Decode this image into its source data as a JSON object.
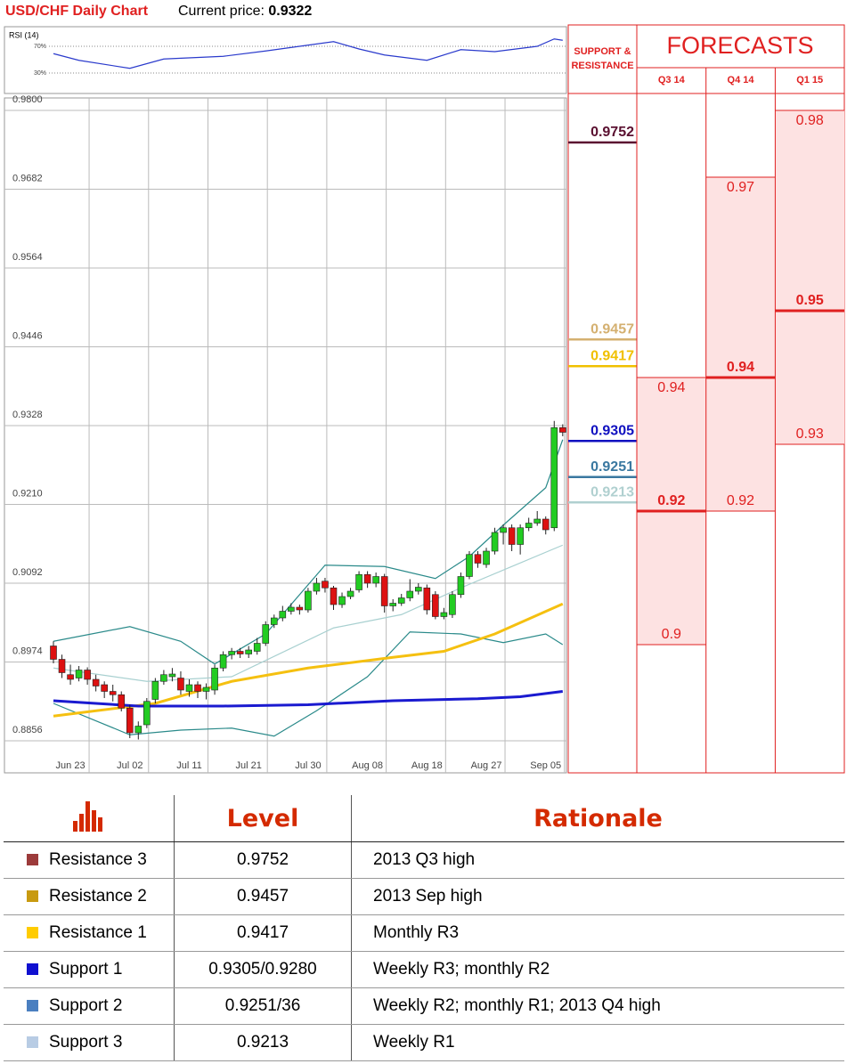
{
  "header": {
    "title": "USD/CHF Daily Chart",
    "price_label": "Current price:",
    "price": 0.9322
  },
  "rsi": {
    "label": "RSI (14)",
    "ylim": [
      0,
      100
    ],
    "yticks": [
      {
        "value": 70,
        "label": "70%"
      },
      {
        "value": 30,
        "label": "30%"
      }
    ],
    "color": "#2a3acc",
    "x": [
      0,
      3,
      9,
      13,
      20,
      25,
      33,
      36,
      39,
      44,
      48,
      52,
      57,
      59,
      60
    ],
    "values": [
      59,
      49,
      37,
      51,
      55,
      63,
      77,
      66,
      57,
      49,
      65,
      62,
      70,
      81,
      79
    ]
  },
  "chart_data": {
    "type": "candlestick",
    "categories": [
      null,
      null,
      "Jun 23",
      null,
      null,
      null,
      null,
      null,
      null,
      "Jul 02",
      null,
      null,
      null,
      null,
      null,
      null,
      "Jul 11",
      null,
      null,
      null,
      null,
      null,
      null,
      "Jul 21",
      null,
      null,
      null,
      null,
      null,
      null,
      "Jul 30",
      null,
      null,
      null,
      null,
      null,
      null,
      "Aug 08",
      null,
      null,
      null,
      null,
      null,
      null,
      "Aug 18",
      null,
      null,
      null,
      null,
      null,
      null,
      "Aug 27",
      null,
      null,
      null,
      null,
      null,
      null,
      "Sep 05",
      null,
      null
    ],
    "open": [
      0.8998,
      0.8978,
      0.8955,
      0.895,
      0.8962,
      0.8948,
      0.894,
      0.893,
      0.8925,
      0.8905,
      0.8868,
      0.888,
      0.8918,
      0.8945,
      0.8952,
      0.895,
      0.893,
      0.894,
      0.893,
      0.8932,
      0.8965,
      0.8985,
      0.899,
      0.8986,
      0.899,
      0.9002,
      0.903,
      0.904,
      0.905,
      0.9056,
      0.9052,
      0.908,
      0.9095,
      0.9085,
      0.906,
      0.9072,
      0.9082,
      0.9105,
      0.9092,
      0.9102,
      0.9058,
      0.9062,
      0.907,
      0.908,
      0.9085,
      0.9075,
      0.9042,
      0.9045,
      0.9075,
      0.9102,
      0.9135,
      0.912,
      0.914,
      0.9168,
      0.9175,
      0.915,
      0.9175,
      0.9182,
      0.9188,
      0.9175,
      0.9325
    ],
    "high": [
      0.9005,
      0.8985,
      0.897,
      0.8968,
      0.8966,
      0.8955,
      0.8945,
      0.894,
      0.893,
      0.891,
      0.8885,
      0.892,
      0.895,
      0.8962,
      0.8965,
      0.896,
      0.8948,
      0.8945,
      0.8942,
      0.897,
      0.899,
      0.8995,
      0.8995,
      0.8998,
      0.901,
      0.9035,
      0.9045,
      0.9058,
      0.9062,
      0.906,
      0.9085,
      0.91,
      0.91,
      0.9088,
      0.9078,
      0.9085,
      0.911,
      0.911,
      0.9108,
      0.9106,
      0.9068,
      0.9076,
      0.9098,
      0.9092,
      0.909,
      0.908,
      0.9055,
      0.908,
      0.9108,
      0.914,
      0.914,
      0.9145,
      0.9175,
      0.918,
      0.918,
      0.918,
      0.919,
      0.92,
      0.9192,
      0.9335,
      0.933
    ],
    "low": [
      0.8972,
      0.895,
      0.894,
      0.8945,
      0.894,
      0.893,
      0.892,
      0.8915,
      0.89,
      0.886,
      0.8858,
      0.8875,
      0.8912,
      0.894,
      0.8945,
      0.8925,
      0.8922,
      0.892,
      0.8918,
      0.8925,
      0.896,
      0.8978,
      0.898,
      0.898,
      0.8985,
      0.8998,
      0.9025,
      0.9035,
      0.9045,
      0.9045,
      0.9048,
      0.9075,
      0.9078,
      0.9052,
      0.9055,
      0.9068,
      0.9078,
      0.9085,
      0.9086,
      0.9048,
      0.905,
      0.9058,
      0.9065,
      0.9075,
      0.9045,
      0.9038,
      0.9038,
      0.904,
      0.907,
      0.9098,
      0.9115,
      0.9115,
      0.9135,
      0.915,
      0.914,
      0.9135,
      0.917,
      0.9178,
      0.9165,
      0.917,
      0.9312
    ],
    "close": [
      0.8978,
      0.8958,
      0.8948,
      0.8962,
      0.8948,
      0.8938,
      0.893,
      0.8925,
      0.8905,
      0.8868,
      0.8878,
      0.8915,
      0.8945,
      0.8955,
      0.8956,
      0.8932,
      0.894,
      0.893,
      0.8936,
      0.8965,
      0.8985,
      0.899,
      0.8986,
      0.8992,
      0.9002,
      0.903,
      0.904,
      0.905,
      0.9056,
      0.9052,
      0.908,
      0.9092,
      0.9085,
      0.906,
      0.9072,
      0.908,
      0.9105,
      0.9092,
      0.9102,
      0.9058,
      0.9062,
      0.907,
      0.908,
      0.9086,
      0.9052,
      0.9042,
      0.9048,
      0.9075,
      0.9102,
      0.9135,
      0.9122,
      0.914,
      0.9168,
      0.9175,
      0.915,
      0.9175,
      0.9182,
      0.9188,
      0.9172,
      0.9325,
      0.9318
    ],
    "up_color": "#22cc22",
    "down_color": "#dd1111",
    "series": [
      {
        "color": "#a8d0d0",
        "x": [
          0,
          11,
          21,
          33,
          41,
          48,
          60
        ],
        "values": [
          0.8965,
          0.8945,
          0.8952,
          0.9025,
          0.9045,
          0.9085,
          0.9149
        ]
      },
      {
        "color": "#2a8a8a",
        "x": [
          0,
          9,
          15,
          19,
          25,
          32,
          39,
          45,
          49,
          53,
          58,
          60
        ],
        "values": [
          0.9005,
          0.9027,
          0.9005,
          0.8971,
          0.9016,
          0.9119,
          0.9117,
          0.9099,
          0.9132,
          0.9179,
          0.9235,
          0.9307
        ]
      },
      {
        "color": "#2a8a8a",
        "x": [
          0,
          9,
          15,
          21,
          26,
          31,
          37,
          42,
          48,
          53,
          58,
          60
        ],
        "values": [
          0.8912,
          0.8865,
          0.8872,
          0.8875,
          0.8863,
          0.8901,
          0.8952,
          0.9019,
          0.9016,
          0.9003,
          0.9016,
          0.9
        ]
      },
      {
        "color": "#f5c010",
        "x": [
          0,
          12,
          21,
          30,
          40,
          46,
          52,
          60
        ],
        "values": [
          0.8893,
          0.8912,
          0.8945,
          0.8965,
          0.8981,
          0.899,
          0.9016,
          0.9061
        ]
      },
      {
        "color": "#1a1ad0",
        "x": [
          0,
          5,
          10,
          20,
          30,
          40,
          50,
          55,
          60
        ],
        "values": [
          0.8916,
          0.8912,
          0.8908,
          0.8908,
          0.891,
          0.8916,
          0.8919,
          0.8922,
          0.893
        ]
      }
    ],
    "ylim": [
      0.8856,
      0.98
    ],
    "yticks": [
      0.8856,
      0.8974,
      0.9092,
      {
        "value": 0.921,
        "label": "0.9210"
      },
      0.9328,
      0.9446,
      0.9564,
      0.9682,
      {
        "value": 0.98,
        "label": "0.9800"
      }
    ],
    "grid": true
  },
  "forecasts": {
    "title": "FORECASTS",
    "levels_header": "SUPPORT & RESISTANCE",
    "levels": [
      {
        "value": 0.9752,
        "color": "#5a1030"
      },
      {
        "value": 0.9457,
        "color": "#d4b070"
      },
      {
        "value": 0.9417,
        "color": "#f0c000"
      },
      {
        "value": 0.9305,
        "color": "#1010c0"
      },
      {
        "value": 0.9251,
        "color": "#3a78a0"
      },
      {
        "value": 0.9213,
        "color": "#b0d0d0"
      }
    ],
    "quarters": [
      {
        "label": "Q3 14",
        "high": 0.94,
        "mid": 0.92,
        "low": 0.9
      },
      {
        "label": "Q4 14",
        "high": 0.97,
        "mid": 0.94,
        "low": 0.92
      },
      {
        "label": "Q1 15",
        "high": 0.98,
        "mid": 0.95,
        "low": 0.93
      }
    ]
  },
  "table": {
    "headers": [
      "Level",
      "Rationale"
    ],
    "rows": [
      {
        "name": "Resistance 3",
        "color": "#9c3b3b",
        "level": "0.9752",
        "rationale": "2013 Q3 high"
      },
      {
        "name": "Resistance 2",
        "color": "#c89a10",
        "level": "0.9457",
        "rationale": "2013 Sep high"
      },
      {
        "name": "Resistance 1",
        "color": "#ffcc00",
        "level": "0.9417",
        "rationale": "Monthly R3"
      },
      {
        "name": "Support 1",
        "color": "#1010d0",
        "level": "0.9305/0.9280",
        "rationale": "Weekly R3; monthly R2"
      },
      {
        "name": "Support 2",
        "color": "#4a7fc0",
        "level": "0.9251/36",
        "rationale": "Weekly R2; monthly R1; 2013 Q4 high"
      },
      {
        "name": "Support 3",
        "color": "#b8cce4",
        "level": "0.9213",
        "rationale": "Weekly R1"
      }
    ]
  }
}
